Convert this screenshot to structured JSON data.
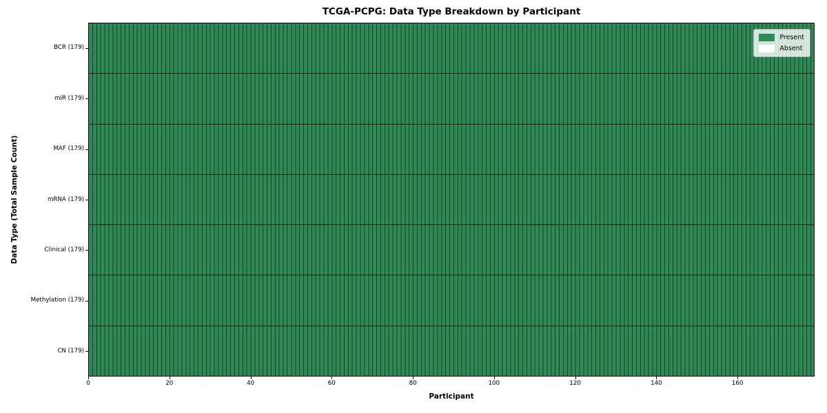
{
  "chart_data": {
    "type": "heatmap",
    "title": "TCGA-PCPG: Data Type Breakdown by Participant",
    "xlabel": "Participant",
    "ylabel": "Data Type (Total Sample Count)",
    "n_participants": 179,
    "x_ticks": [
      0,
      20,
      40,
      60,
      80,
      100,
      120,
      140,
      160
    ],
    "rows": [
      {
        "label": "BCR (179)",
        "present_count": 179,
        "absent_count": 0
      },
      {
        "label": "miR (179)",
        "present_count": 179,
        "absent_count": 0
      },
      {
        "label": "MAF (179)",
        "present_count": 179,
        "absent_count": 0
      },
      {
        "label": "mRNA (179)",
        "present_count": 179,
        "absent_count": 0
      },
      {
        "label": "Clinical (179)",
        "present_count": 179,
        "absent_count": 0
      },
      {
        "label": "Methylation (179)",
        "present_count": 179,
        "absent_count": 0
      },
      {
        "label": "CN (179)",
        "present_count": 179,
        "absent_count": 0
      }
    ],
    "legend": {
      "items": [
        {
          "label": "Present",
          "color": "#2e8b57"
        },
        {
          "label": "Absent",
          "color": "#ffffff"
        }
      ]
    },
    "colors": {
      "present": "#2e8b57",
      "absent": "#ffffff",
      "gridline": "rgba(0,0,0,0.55)",
      "row_separator": "rgba(0,0,0,0.8)",
      "spine": "#000000"
    },
    "layout": {
      "grid": "on",
      "legend_position": "upper right"
    }
  }
}
